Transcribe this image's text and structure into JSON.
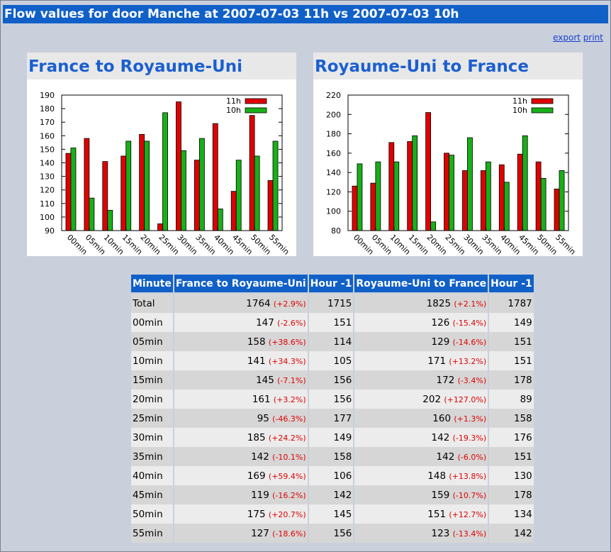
{
  "page": {
    "title": "Flow values for door Manche at 2007-07-03 11h vs 2007-07-03 10h",
    "links": {
      "export": "export",
      "print": "print"
    }
  },
  "colors": {
    "title_bg": "#1060c8",
    "series_11h": "#e00000",
    "series_10h": "#18b018",
    "heading": "#1b5fcf"
  },
  "chart_data": [
    {
      "type": "bar",
      "title": "France to Royaume-Uni",
      "categories": [
        "00min",
        "05min",
        "10min",
        "15min",
        "20min",
        "25min",
        "30min",
        "35min",
        "40min",
        "45min",
        "50min",
        "55min"
      ],
      "series": [
        {
          "name": "11h",
          "values": [
            147,
            158,
            141,
            145,
            161,
            95,
            185,
            142,
            169,
            119,
            175,
            127
          ]
        },
        {
          "name": "10h",
          "values": [
            151,
            114,
            105,
            156,
            156,
            177,
            149,
            158,
            106,
            142,
            145,
            156
          ]
        }
      ],
      "ylim": [
        90,
        190
      ],
      "yticks": [
        90,
        100,
        110,
        120,
        130,
        140,
        150,
        160,
        170,
        180,
        190
      ],
      "legend": "top-right",
      "grid": false
    },
    {
      "type": "bar",
      "title": "Royaume-Uni to France",
      "categories": [
        "00min",
        "05min",
        "10min",
        "15min",
        "20min",
        "25min",
        "30min",
        "35min",
        "40min",
        "45min",
        "50min",
        "55min"
      ],
      "series": [
        {
          "name": "11h",
          "values": [
            126,
            129,
            171,
            172,
            202,
            160,
            142,
            142,
            148,
            159,
            151,
            123
          ]
        },
        {
          "name": "10h",
          "values": [
            149,
            151,
            151,
            178,
            89,
            158,
            176,
            151,
            130,
            178,
            134,
            142
          ]
        }
      ],
      "ylim": [
        80,
        220
      ],
      "yticks": [
        80,
        100,
        120,
        140,
        160,
        180,
        200,
        220
      ],
      "legend": "top-right",
      "grid": false
    }
  ],
  "table": {
    "headers": [
      "Minute",
      "France to Royaume-Uni",
      "Hour -1",
      "Royaume-Uni to France",
      "Hour -1"
    ],
    "rows": [
      {
        "minute": "Total",
        "fr_uk": "1764",
        "fr_uk_delta": "(+2.9%)",
        "fr_uk_prev": "1715",
        "uk_fr": "1825",
        "uk_fr_delta": "(+2.1%)",
        "uk_fr_prev": "1787"
      },
      {
        "minute": "00min",
        "fr_uk": "147",
        "fr_uk_delta": "(-2.6%)",
        "fr_uk_prev": "151",
        "uk_fr": "126",
        "uk_fr_delta": "(-15.4%)",
        "uk_fr_prev": "149"
      },
      {
        "minute": "05min",
        "fr_uk": "158",
        "fr_uk_delta": "(+38.6%)",
        "fr_uk_prev": "114",
        "uk_fr": "129",
        "uk_fr_delta": "(-14.6%)",
        "uk_fr_prev": "151"
      },
      {
        "minute": "10min",
        "fr_uk": "141",
        "fr_uk_delta": "(+34.3%)",
        "fr_uk_prev": "105",
        "uk_fr": "171",
        "uk_fr_delta": "(+13.2%)",
        "uk_fr_prev": "151"
      },
      {
        "minute": "15min",
        "fr_uk": "145",
        "fr_uk_delta": "(-7.1%)",
        "fr_uk_prev": "156",
        "uk_fr": "172",
        "uk_fr_delta": "(-3.4%)",
        "uk_fr_prev": "178"
      },
      {
        "minute": "20min",
        "fr_uk": "161",
        "fr_uk_delta": "(+3.2%)",
        "fr_uk_prev": "156",
        "uk_fr": "202",
        "uk_fr_delta": "(+127.0%)",
        "uk_fr_prev": "89"
      },
      {
        "minute": "25min",
        "fr_uk": "95",
        "fr_uk_delta": "(-46.3%)",
        "fr_uk_prev": "177",
        "uk_fr": "160",
        "uk_fr_delta": "(+1.3%)",
        "uk_fr_prev": "158"
      },
      {
        "minute": "30min",
        "fr_uk": "185",
        "fr_uk_delta": "(+24.2%)",
        "fr_uk_prev": "149",
        "uk_fr": "142",
        "uk_fr_delta": "(-19.3%)",
        "uk_fr_prev": "176"
      },
      {
        "minute": "35min",
        "fr_uk": "142",
        "fr_uk_delta": "(-10.1%)",
        "fr_uk_prev": "158",
        "uk_fr": "142",
        "uk_fr_delta": "(-6.0%)",
        "uk_fr_prev": "151"
      },
      {
        "minute": "40min",
        "fr_uk": "169",
        "fr_uk_delta": "(+59.4%)",
        "fr_uk_prev": "106",
        "uk_fr": "148",
        "uk_fr_delta": "(+13.8%)",
        "uk_fr_prev": "130"
      },
      {
        "minute": "45min",
        "fr_uk": "119",
        "fr_uk_delta": "(-16.2%)",
        "fr_uk_prev": "142",
        "uk_fr": "159",
        "uk_fr_delta": "(-10.7%)",
        "uk_fr_prev": "178"
      },
      {
        "minute": "50min",
        "fr_uk": "175",
        "fr_uk_delta": "(+20.7%)",
        "fr_uk_prev": "145",
        "uk_fr": "151",
        "uk_fr_delta": "(+12.7%)",
        "uk_fr_prev": "134"
      },
      {
        "minute": "55min",
        "fr_uk": "127",
        "fr_uk_delta": "(-18.6%)",
        "fr_uk_prev": "156",
        "uk_fr": "123",
        "uk_fr_delta": "(-13.4%)",
        "uk_fr_prev": "142"
      }
    ]
  }
}
